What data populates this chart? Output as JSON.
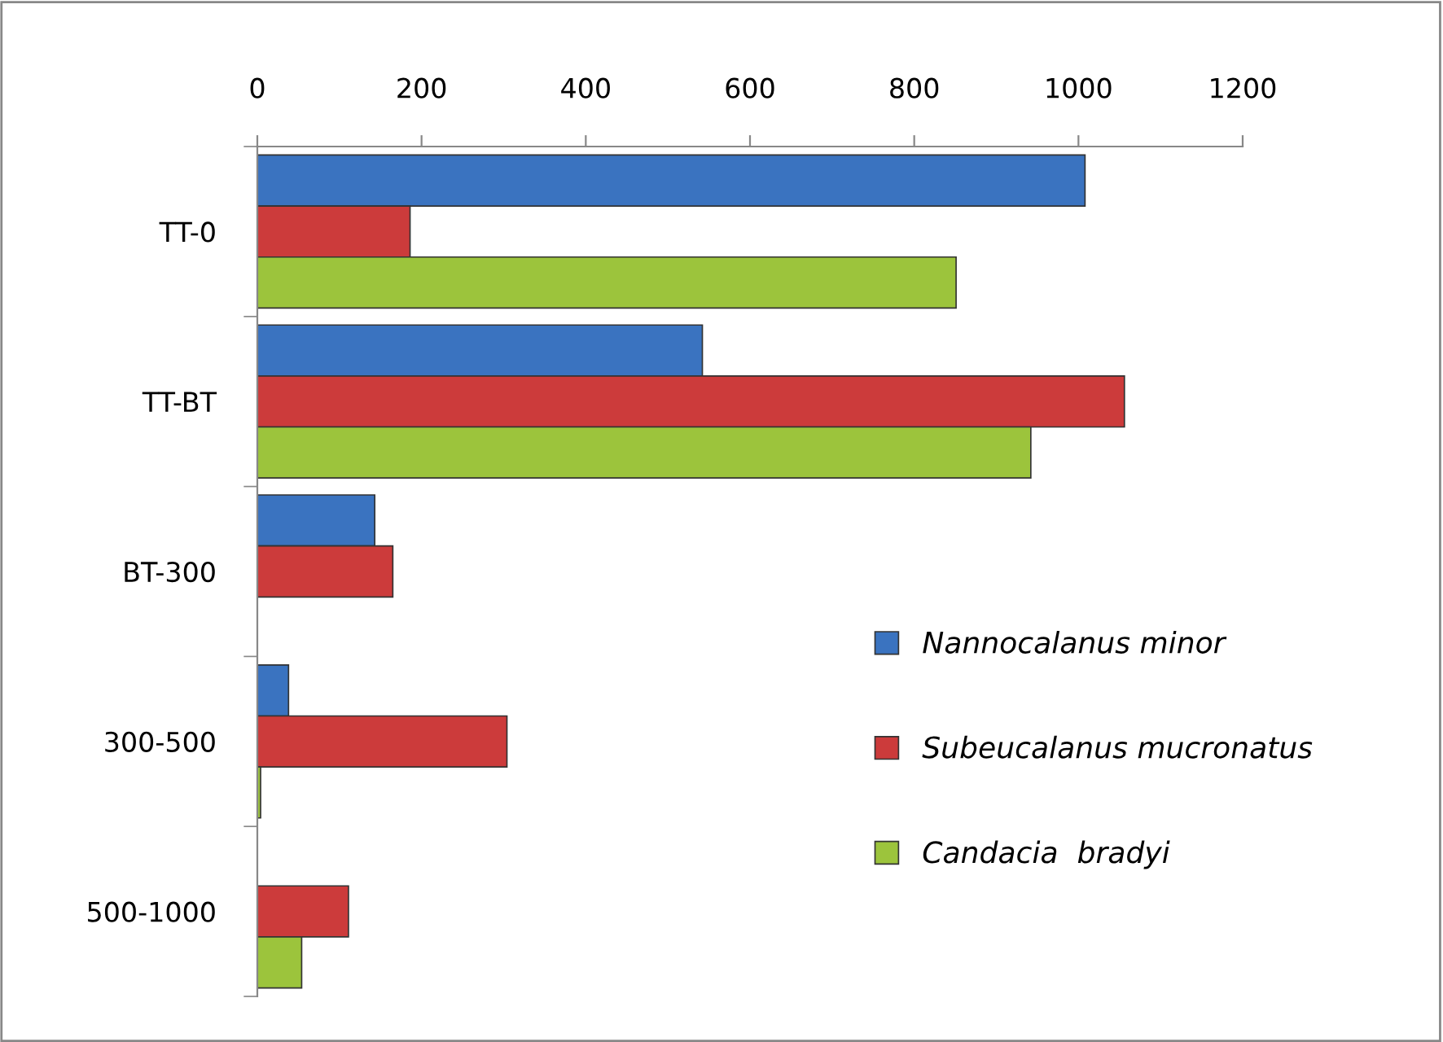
{
  "chart_data": {
    "type": "bar",
    "orientation": "horizontal",
    "categories": [
      "TT-0",
      "TT-BT",
      "BT-300",
      "300-500",
      "500-1000"
    ],
    "series": [
      {
        "name": "Nannocalanus minor",
        "color": "#3a73c0",
        "values": [
          1008,
          542,
          143,
          38,
          null
        ]
      },
      {
        "name": "Subeucalanus mucronatus",
        "color": "#cc3b3b",
        "values": [
          186,
          1056,
          165,
          304,
          111
        ]
      },
      {
        "name": "Candacia  bradyi",
        "color": "#9cc43c",
        "values": [
          851,
          942,
          null,
          4,
          54
        ]
      }
    ],
    "xlim": [
      0,
      1200
    ],
    "xticks": [
      0,
      200,
      400,
      600,
      800,
      1000,
      1200
    ],
    "grid": false,
    "legend": "right"
  }
}
